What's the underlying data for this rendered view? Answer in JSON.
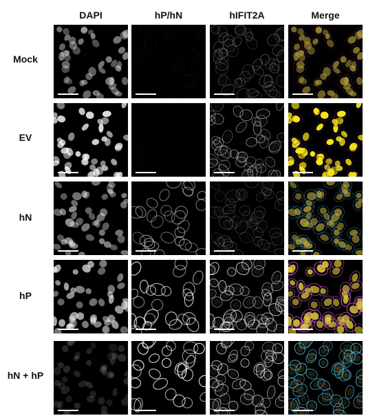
{
  "columns": [
    "DAPI",
    "hP/hN",
    "hIFIT2A",
    "Merge"
  ],
  "rows": [
    {
      "label": "Mock",
      "dapi": 0.55,
      "signal": 0.03,
      "ifit": 0.3,
      "dapi_color": "#b7a43a",
      "merge_glow": "#6b2c6b"
    },
    {
      "label": "EV",
      "dapi": 0.95,
      "signal": 0.02,
      "ifit": 0.55,
      "dapi_color": "#f4e21c",
      "merge_glow": "#3a1a3a"
    },
    {
      "label": "hN",
      "dapi": 0.6,
      "signal": 0.55,
      "ifit": 0.25,
      "dapi_color": "#bca93a",
      "merge_glow": "#3b8fb0"
    },
    {
      "label": "hP",
      "dapi": 0.75,
      "signal": 0.85,
      "ifit": 0.85,
      "dapi_color": "#e0cd36",
      "merge_glow": "#d257c9"
    },
    {
      "label": "hN + hP",
      "dapi": 0.18,
      "signal": 0.9,
      "ifit": 0.8,
      "dapi_color": "#6a5e2a",
      "merge_glow": "#57b5d6"
    }
  ],
  "colors": {
    "background": "#ffffff",
    "panel_background": "#000000",
    "scale_bar": "#ffffff"
  }
}
